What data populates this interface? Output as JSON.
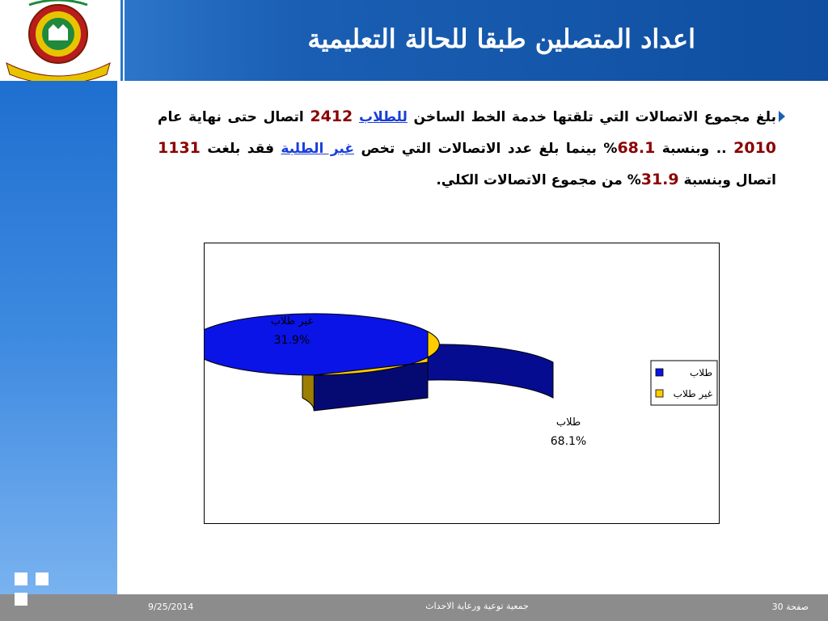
{
  "slide": {
    "title": "اعداد المتصلين طبقا للحالة التعليمية",
    "paragraph": {
      "p1": "بلغ مجموع الاتصالات التي تلقتها خدمة الخط الساخن ",
      "students_link": "للطلاب",
      "total_students": "2412",
      "p2": " اتصال حتى نهاية عام ",
      "year": "2010",
      "p3": " .. وبنسبة ",
      "pct_students": "68.1",
      "p4": "% بينما بلغ عدد الاتصالات التي تخص ",
      "nonstudents_link": "غير الطلبة",
      "p5": " فقد بلغت ",
      "total_nonstudents": "1131",
      "p6": " اتصال وبنسبة ",
      "pct_nonstudents": "31.9",
      "p7": "% من مجموع الاتصالات الكلي."
    }
  },
  "chart_data": {
    "type": "pie",
    "categories": [
      "طلاب",
      "غير طلاب"
    ],
    "values": [
      68.1,
      31.9
    ],
    "data_labels": [
      "68.1%",
      "31.9%"
    ],
    "colors": [
      "#0a14e6",
      "#ffcc00"
    ],
    "legend_position": "right"
  },
  "footer": {
    "date": "9/25/2014",
    "org": "جمعية توعية ورعاية الاحداث",
    "page": "صفحة 30"
  }
}
